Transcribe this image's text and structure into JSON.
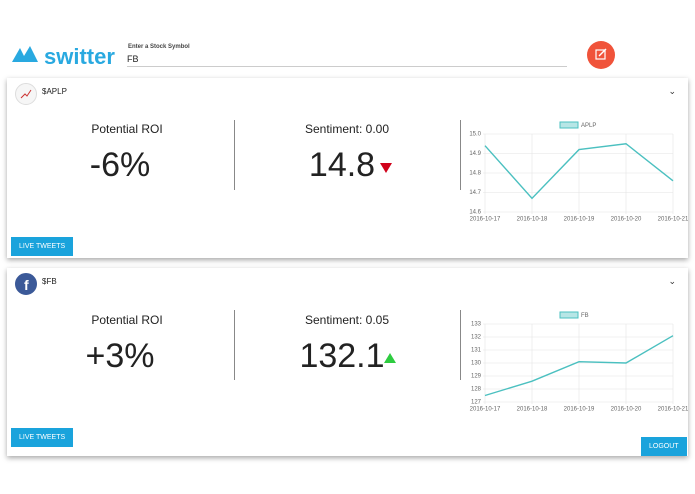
{
  "header": {
    "logo": "switter",
    "input_label": "Enter a Stock Symbol",
    "input_value": "FB"
  },
  "cards": [
    {
      "symbol": "$APLP",
      "roi_label": "Potential ROI",
      "roi_value": "-6%",
      "sentiment_label": "Sentiment: 0.00",
      "price": "14.8",
      "button": "LIVE TWEETS"
    },
    {
      "symbol": "$FB",
      "roi_label": "Potential ROI",
      "roi_value": "+3%",
      "sentiment_label": "Sentiment: 0.05",
      "price": "132.1",
      "button": "LIVE TWEETS"
    }
  ],
  "logout": "LOGOUT",
  "chart_data": [
    {
      "type": "line",
      "categories": [
        "2016-10-17",
        "2016-10-18",
        "2016-10-19",
        "2016-10-20",
        "2016-10-21"
      ],
      "series": [
        {
          "name": "APLP",
          "color": "#4bc0c0",
          "values": [
            14.94,
            14.67,
            14.92,
            14.95,
            14.76
          ]
        }
      ],
      "ylim": [
        14.6,
        15.0
      ],
      "yticks": [
        14.6,
        14.7,
        14.8,
        14.9,
        {
          "value": 15.0,
          "label": "15.0"
        }
      ],
      "grid": true
    },
    {
      "type": "line",
      "categories": [
        "2016-10-17",
        "2016-10-18",
        "2016-10-19",
        "2016-10-20",
        "2016-10-21"
      ],
      "series": [
        {
          "name": "FB",
          "color": "#4bc0c0",
          "values": [
            127.5,
            128.6,
            130.1,
            130.0,
            132.1
          ]
        }
      ],
      "ylim": [
        127,
        133
      ],
      "yticks": [
        127,
        128,
        129,
        130,
        131,
        132,
        133
      ],
      "grid": true
    }
  ]
}
